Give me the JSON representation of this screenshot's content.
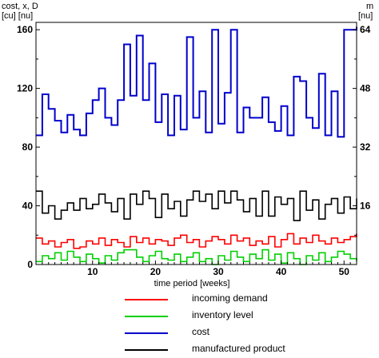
{
  "chart_data": {
    "type": "line",
    "xlabel": "time period [weeks]",
    "ylabel_left_top": "cost, x, D",
    "ylabel_left_units": "[cu]  [nu]",
    "ylabel_right_top": "m",
    "ylabel_right_units": "[nu]",
    "xlim": [
      1,
      52
    ],
    "ylim_left": [
      0,
      165
    ],
    "ylim_right": [
      0,
      66
    ],
    "x_ticks": [
      10,
      20,
      30,
      40,
      50
    ],
    "y_left_ticks": [
      0,
      40,
      80,
      120,
      160
    ],
    "y_right_ticks": [
      16,
      32,
      48,
      64
    ],
    "grid": false,
    "legend_placement": "bottom",
    "step": true,
    "x": [
      1,
      2,
      3,
      4,
      5,
      6,
      7,
      8,
      9,
      10,
      11,
      12,
      13,
      14,
      15,
      16,
      17,
      18,
      19,
      20,
      21,
      22,
      23,
      24,
      25,
      26,
      27,
      28,
      29,
      30,
      31,
      32,
      33,
      34,
      35,
      36,
      37,
      38,
      39,
      40,
      41,
      42,
      43,
      44,
      45,
      46,
      47,
      48,
      49,
      50,
      51,
      52
    ],
    "series": [
      {
        "name": "incoming demand",
        "color": "#ff0000",
        "axis": "left",
        "values": [
          18,
          14,
          16,
          12,
          15,
          17,
          11,
          12,
          16,
          14,
          18,
          13,
          17,
          15,
          12,
          19,
          15,
          18,
          14,
          17,
          16,
          13,
          18,
          20,
          15,
          17,
          12,
          16,
          19,
          17,
          14,
          20,
          16,
          18,
          13,
          16,
          14,
          19,
          12,
          17,
          21,
          14,
          18,
          15,
          20,
          16,
          14,
          18,
          15,
          17,
          19,
          21
        ]
      },
      {
        "name": "inventory level",
        "color": "#00d000",
        "axis": "left",
        "values": [
          2,
          6,
          4,
          8,
          3,
          9,
          5,
          2,
          7,
          4,
          1,
          6,
          3,
          8,
          10,
          10,
          5,
          2,
          6,
          9,
          4,
          3,
          7,
          2,
          5,
          8,
          2,
          4,
          0,
          6,
          3,
          9,
          5,
          2,
          7,
          4,
          10,
          3,
          7,
          1,
          8,
          4,
          0,
          6,
          3,
          8,
          2,
          5,
          9,
          7,
          4,
          2
        ]
      },
      {
        "name": "cost",
        "color": "#0000cc",
        "axis": "left",
        "values": [
          88,
          116,
          106,
          98,
          90,
          102,
          92,
          88,
          103,
          112,
          120,
          100,
          95,
          112,
          150,
          115,
          156,
          112,
          137,
          97,
          116,
          88,
          115,
          92,
          155,
          100,
          118,
          90,
          160,
          96,
          117,
          160,
          90,
          107,
          100,
          100,
          114,
          97,
          91,
          108,
          88,
          128,
          125,
          100,
          93,
          130,
          88,
          118,
          87,
          160,
          160,
          162
        ]
      },
      {
        "name": "manufactured product",
        "color": "#000000",
        "axis": "left",
        "values": [
          50,
          35,
          40,
          31,
          37,
          42,
          37,
          45,
          38,
          41,
          48,
          42,
          36,
          45,
          31,
          48,
          41,
          50,
          45,
          32,
          48,
          38,
          43,
          33,
          44,
          50,
          43,
          48,
          38,
          50,
          42,
          50,
          44,
          36,
          45,
          33,
          50,
          33,
          46,
          41,
          45,
          30,
          50,
          37,
          44,
          31,
          41,
          45,
          35,
          46,
          38,
          45
        ]
      }
    ]
  }
}
